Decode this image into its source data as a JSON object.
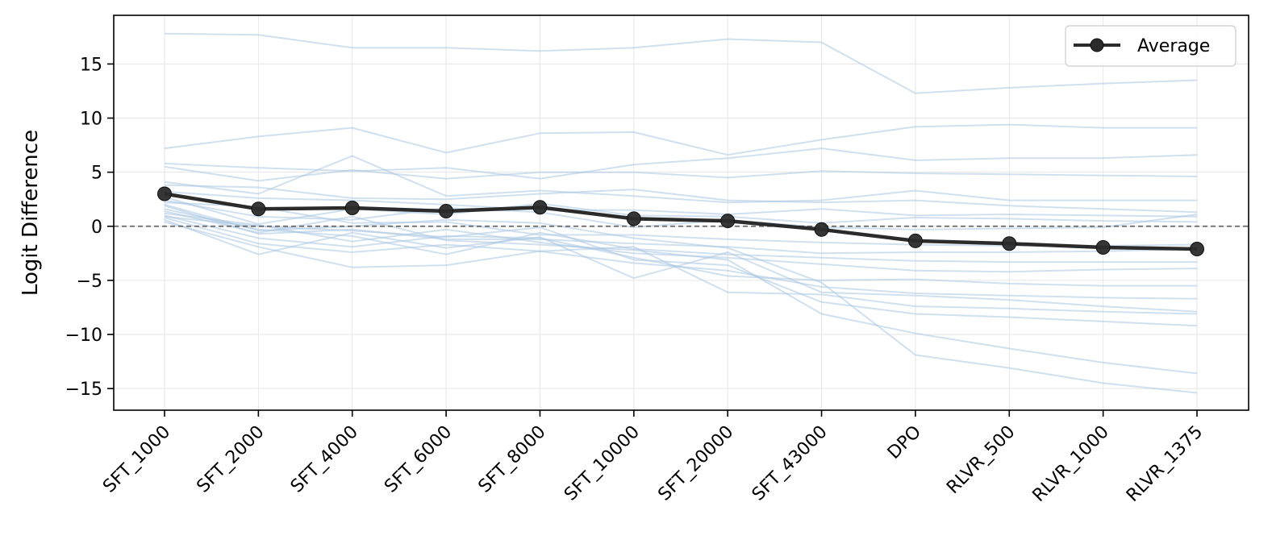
{
  "chart_data": {
    "type": "line",
    "title": "",
    "xlabel": "",
    "ylabel": "Logit Difference",
    "categories": [
      "SFT_1000",
      "SFT_2000",
      "SFT_4000",
      "SFT_6000",
      "SFT_8000",
      "SFT_10000",
      "SFT_20000",
      "SFT_43000",
      "DPO",
      "RLVR_500",
      "RLVR_1000",
      "RLVR_1375"
    ],
    "ylim": [
      -17,
      19.5
    ],
    "yticks": [
      -15,
      -10,
      -5,
      0,
      5,
      10,
      15
    ],
    "ytick_labels": [
      "−15",
      "−10",
      "−5",
      "0",
      "5",
      "10",
      "15"
    ],
    "grid": true,
    "reference_line": 0,
    "legend_position": "top-right",
    "series": [
      {
        "name": "Average",
        "color": "#2b2b2b",
        "values": [
          3.0,
          1.6,
          1.7,
          1.4,
          1.75,
          0.7,
          0.5,
          -0.3,
          -1.35,
          -1.6,
          -1.95,
          -2.1
        ]
      }
    ],
    "individual_series_color": "#a9c6e1",
    "individual_series": [
      [
        17.8,
        17.7,
        16.5,
        16.5,
        16.2,
        16.5,
        17.3,
        17.0,
        12.3,
        12.8,
        13.2,
        13.5
      ],
      [
        7.2,
        8.3,
        9.1,
        6.8,
        8.6,
        8.7,
        6.6,
        8.0,
        9.2,
        9.4,
        9.1,
        9.1
      ],
      [
        5.8,
        5.4,
        5.1,
        5.4,
        4.4,
        5.7,
        6.3,
        7.2,
        6.1,
        6.3,
        6.3,
        6.6
      ],
      [
        5.5,
        4.2,
        5.2,
        4.4,
        5.0,
        5.0,
        4.5,
        5.1,
        4.9,
        4.8,
        4.7,
        4.6
      ],
      [
        4.1,
        3.0,
        6.5,
        2.8,
        3.3,
        2.8,
        2.2,
        2.4,
        3.3,
        2.4,
        2.4,
        2.4
      ],
      [
        3.8,
        3.6,
        2.6,
        2.5,
        3.0,
        3.4,
        2.4,
        2.2,
        2.4,
        1.9,
        1.6,
        1.3
      ],
      [
        3.2,
        2.6,
        2.4,
        2.0,
        1.5,
        1.5,
        1.1,
        1.6,
        1.0,
        1.1,
        1.0,
        0.9
      ],
      [
        2.7,
        0.2,
        1.6,
        1.1,
        2.1,
        1.0,
        0.9,
        0.3,
        0.8,
        0.7,
        0.5,
        0.4
      ],
      [
        2.4,
        0.9,
        0.6,
        1.7,
        1.3,
        -0.1,
        0.6,
        -0.1,
        -0.3,
        -0.2,
        -0.1,
        1.1
      ],
      [
        2.2,
        1.8,
        0.3,
        0.4,
        -0.8,
        -0.8,
        -1.2,
        -1.5,
        -1.7,
        -1.8,
        -1.8,
        -1.7
      ],
      [
        1.9,
        -0.7,
        -0.3,
        -1.2,
        -1.2,
        -1.6,
        -1.9,
        -2.5,
        -2.4,
        -2.4,
        -2.3,
        -2.1
      ],
      [
        1.6,
        -0.3,
        -0.9,
        -2.6,
        -0.6,
        -2.1,
        -2.6,
        -2.9,
        -3.2,
        -3.3,
        -3.3,
        -3.3
      ],
      [
        1.2,
        0.1,
        -1.4,
        -0.3,
        -1.5,
        -2.5,
        -2.9,
        -3.5,
        -4.1,
        -4.2,
        -4.0,
        -3.9
      ],
      [
        1.0,
        -1.1,
        -1.9,
        -0.9,
        -1.1,
        -2.9,
        -4.6,
        -5.0,
        -4.9,
        -5.3,
        -5.5,
        -5.5
      ],
      [
        0.8,
        -1.6,
        -2.4,
        -1.7,
        -2.3,
        -3.4,
        -4.1,
        -5.6,
        -6.2,
        -6.4,
        -6.6,
        -6.7
      ],
      [
        0.6,
        -2.6,
        -0.6,
        -2.0,
        -1.0,
        -4.8,
        -2.4,
        -6.1,
        -6.4,
        -6.8,
        -7.4,
        -7.9
      ],
      [
        0.4,
        -1.9,
        -3.8,
        -3.6,
        -2.3,
        -1.9,
        -6.1,
        -6.3,
        -7.4,
        -7.6,
        -7.9,
        -8.1
      ],
      [
        0.9,
        0.0,
        -0.4,
        -1.0,
        -0.1,
        -3.1,
        -3.6,
        -7.0,
        -8.1,
        -8.4,
        -8.8,
        -9.2
      ],
      [
        1.4,
        -0.6,
        0.9,
        -1.3,
        -1.7,
        -2.2,
        -3.1,
        -8.1,
        -9.9,
        -11.3,
        -12.6,
        -13.6
      ],
      [
        2.0,
        -0.4,
        0.0,
        0.6,
        0.3,
        -1.1,
        -2.0,
        -5.2,
        -11.9,
        -13.1,
        -14.5,
        -15.4
      ]
    ]
  }
}
